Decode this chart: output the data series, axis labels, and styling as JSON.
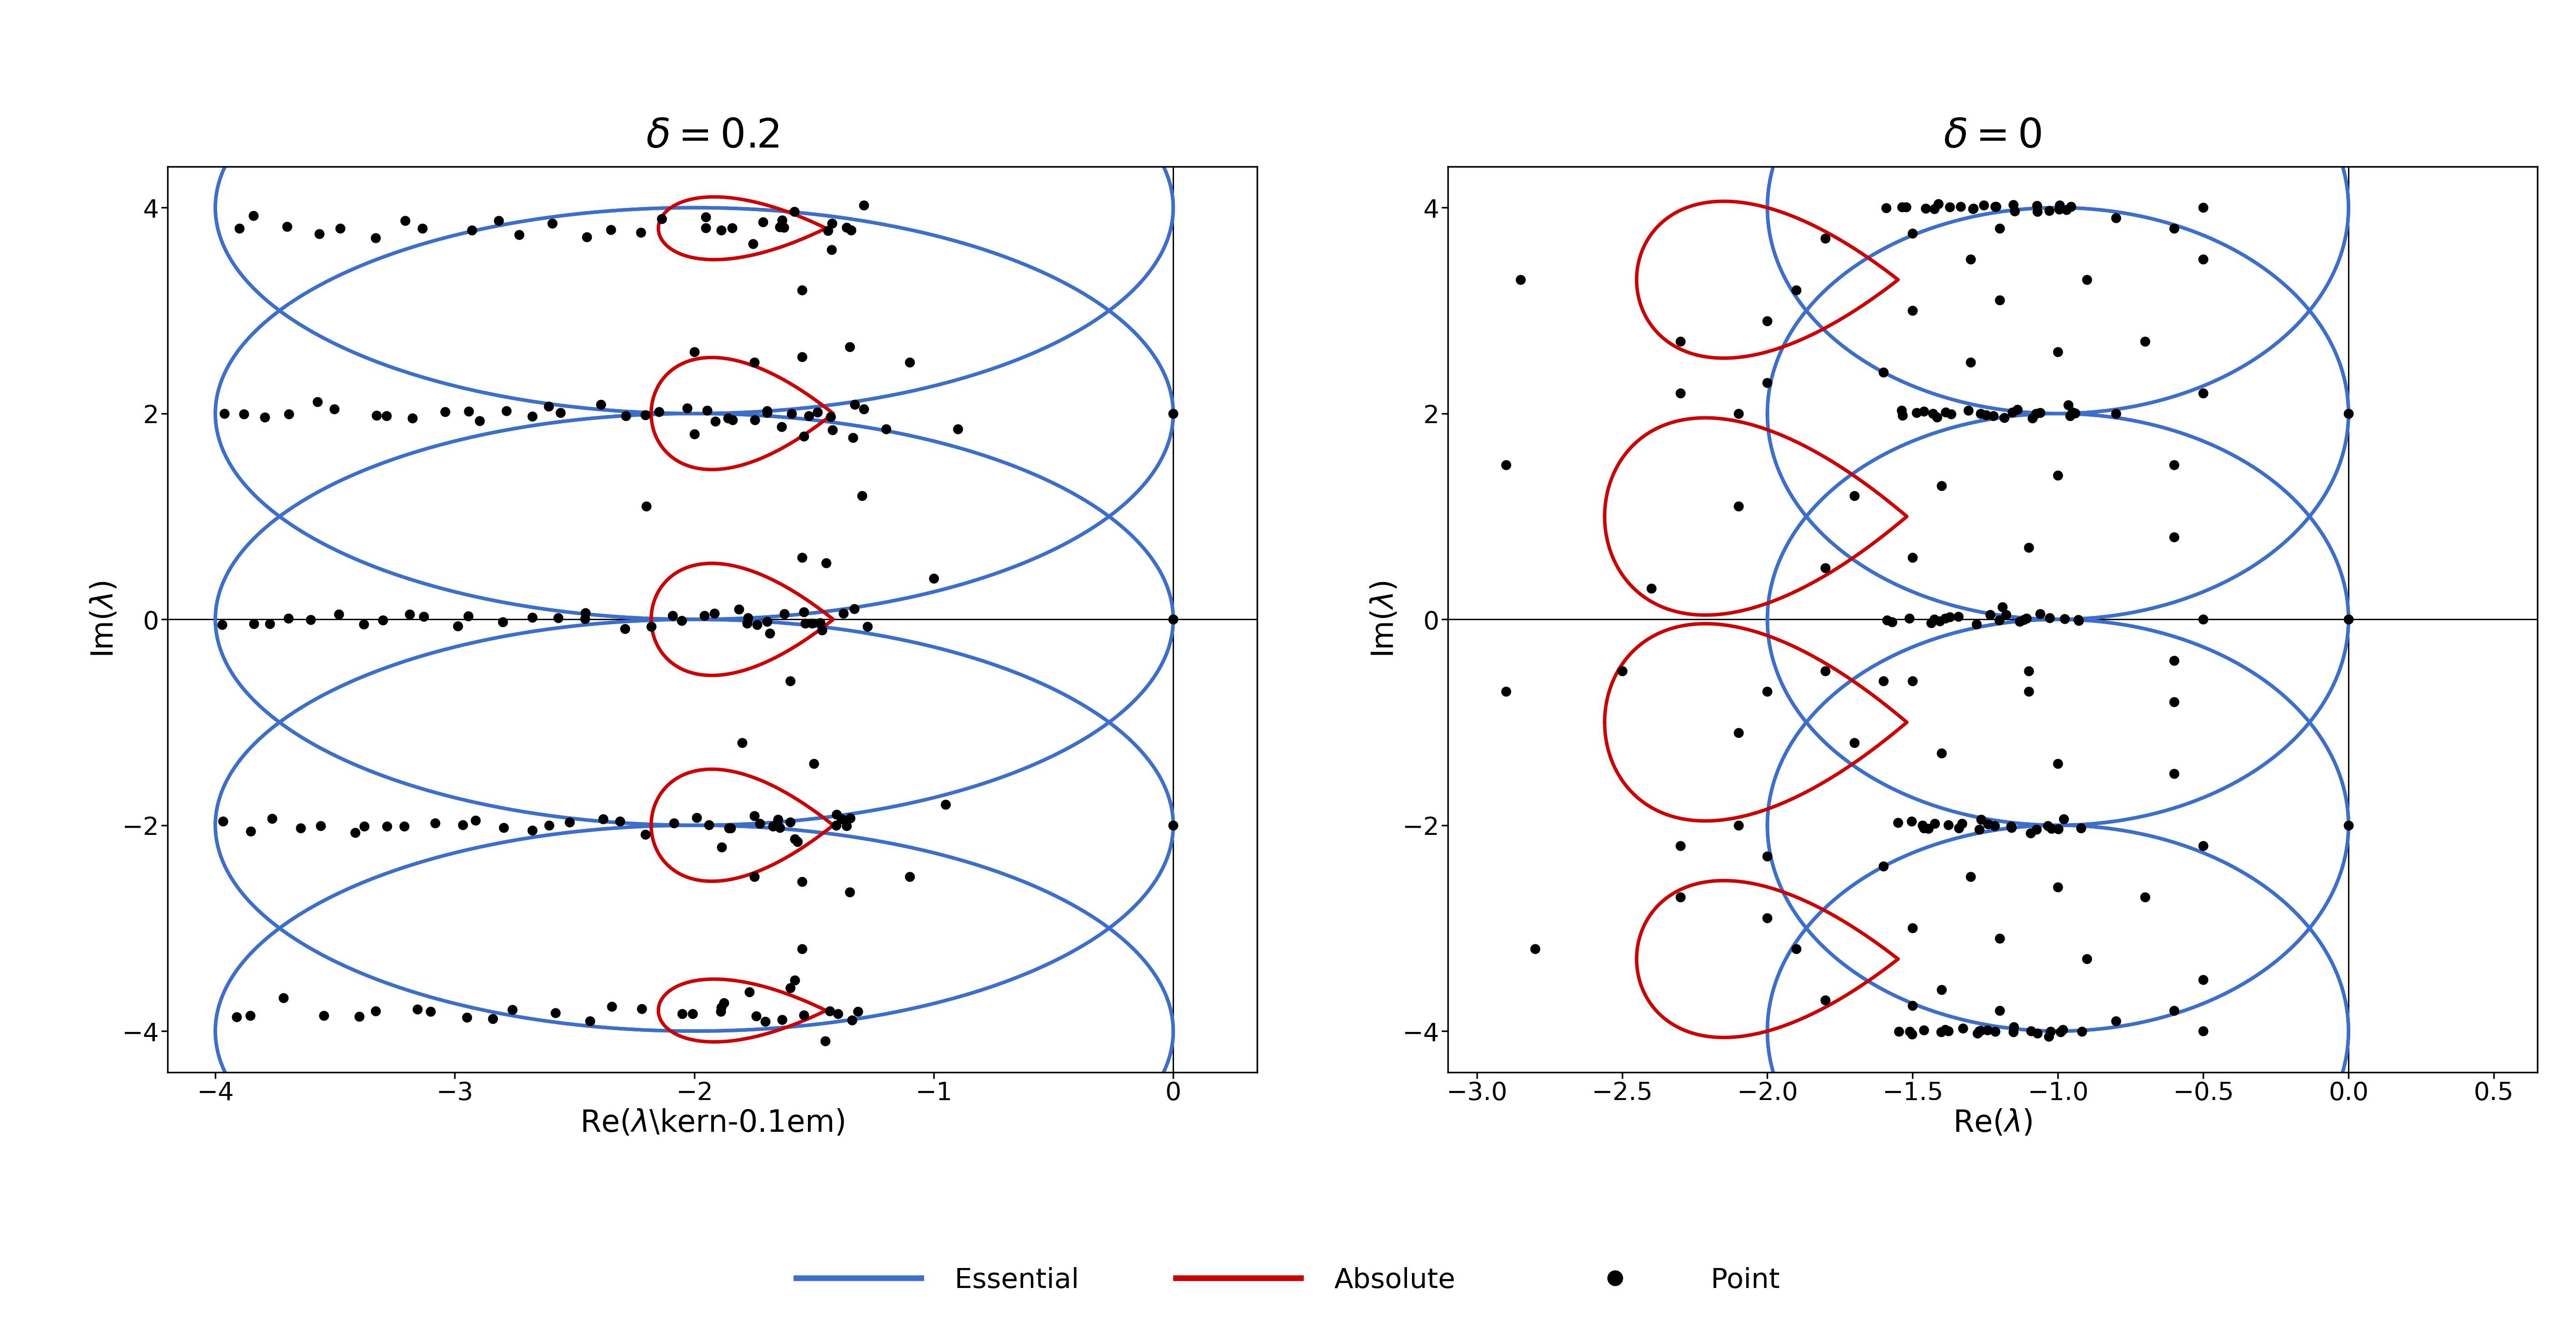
{
  "left_title": "$\\delta = 0.2$",
  "right_title": "$\\delta = 0$",
  "left_xlim": [
    -4.2,
    0.35
  ],
  "left_ylim": [
    -4.4,
    4.4
  ],
  "right_xlim": [
    -3.1,
    0.65
  ],
  "right_ylim": [
    -4.4,
    4.4
  ],
  "left_xticks": [
    -4,
    -3,
    -2,
    -1,
    0
  ],
  "left_yticks": [
    -4,
    -2,
    0,
    2,
    4
  ],
  "right_xticks": [
    -3,
    -2.5,
    -2,
    -1.5,
    -1,
    -0.5,
    0,
    0.5
  ],
  "right_yticks": [
    -4,
    -2,
    0,
    2,
    4
  ],
  "xlabel_left": "Re($\\lambda$\\kern-0.1em)",
  "xlabel_right": "Re($\\lambda$)",
  "ylabel": "Im($\\lambda$)",
  "essential_color": "#3C6FCC",
  "absolute_color": "#CC0000",
  "point_color": "#000000",
  "lw_essential": 5.5,
  "lw_absolute": 5.5,
  "point_size": 250,
  "legend_fontsize": 44,
  "title_fontsize": 64,
  "tick_fontsize": 40,
  "label_fontsize": 48
}
